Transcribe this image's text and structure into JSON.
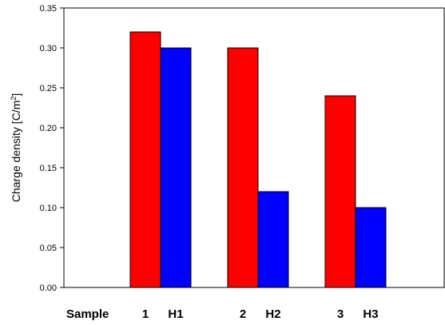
{
  "chart_data": {
    "type": "bar",
    "ylabel": "Charge density [C/m",
    "ylabel_sup": "2",
    "ylabel_close": "]",
    "ylim": [
      0,
      0.35
    ],
    "yticks": [
      "0.00",
      "0.05",
      "0.10",
      "0.15",
      "0.20",
      "0.25",
      "0.30",
      "0.35"
    ],
    "grid": false,
    "legend": "none",
    "x_prefix": "Sample",
    "groups": [
      {
        "bars": [
          {
            "label": "1",
            "value": 0.32,
            "color": "#ff0000"
          },
          {
            "label": "H1",
            "value": 0.3,
            "color": "#0000ff"
          }
        ]
      },
      {
        "bars": [
          {
            "label": "2",
            "value": 0.3,
            "color": "#ff0000"
          },
          {
            "label": "H2",
            "value": 0.12,
            "color": "#0000ff"
          }
        ]
      },
      {
        "bars": [
          {
            "label": "3",
            "value": 0.24,
            "color": "#ff0000"
          },
          {
            "label": "H3",
            "value": 0.1,
            "color": "#0000ff"
          }
        ]
      }
    ]
  }
}
